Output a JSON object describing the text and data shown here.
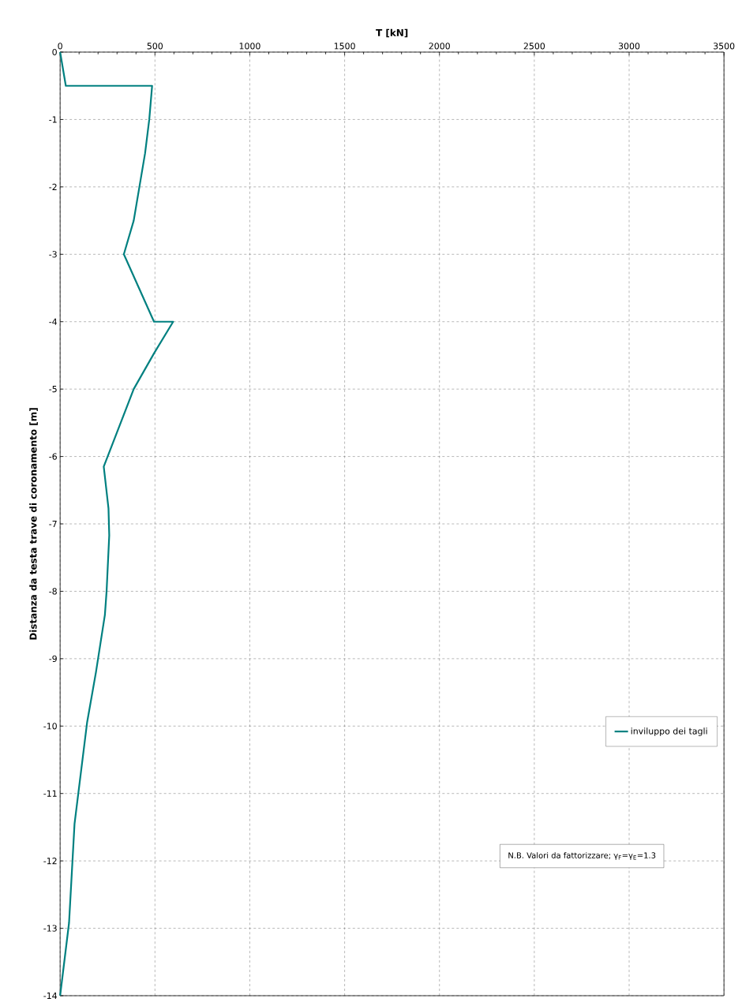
{
  "chart_data": {
    "type": "line",
    "xlabel": "T [kN]",
    "ylabel": "Distanza da testa trave di coronamento [m]",
    "x": [
      0,
      30,
      485,
      470,
      448,
      418,
      388,
      336,
      495,
      596,
      495,
      388,
      230,
      255,
      259,
      245,
      236,
      189,
      142,
      76,
      47,
      0
    ],
    "series": [
      {
        "name": "inviluppo dei tagli",
        "color": "#008080",
        "values": [
          0,
          -0.5,
          -0.5,
          -1,
          -1.5,
          -2,
          -2.5,
          -3,
          -4,
          -4,
          -4.47,
          -5,
          -6.15,
          -6.77,
          -7.17,
          -8,
          -8.35,
          -9.2,
          -9.95,
          -11.45,
          -12.92,
          -14
        ]
      }
    ],
    "xlim": [
      0,
      3500
    ],
    "xticks": [
      0,
      500,
      1000,
      1500,
      2000,
      2500,
      3000,
      3500
    ],
    "ylim": [
      -14,
      0
    ],
    "yticks": [
      -14,
      -13,
      -12,
      -11,
      -10,
      -9,
      -8,
      -7,
      -6,
      -5,
      -4,
      -3,
      -2,
      -1,
      0
    ],
    "grid": true,
    "legend": "right",
    "line_style": "solid",
    "marker": "none",
    "annotations": [
      "N.B. Valori da fattorizzare; γ$_{F}$=γ$_{E}$=1.3"
    ]
  }
}
